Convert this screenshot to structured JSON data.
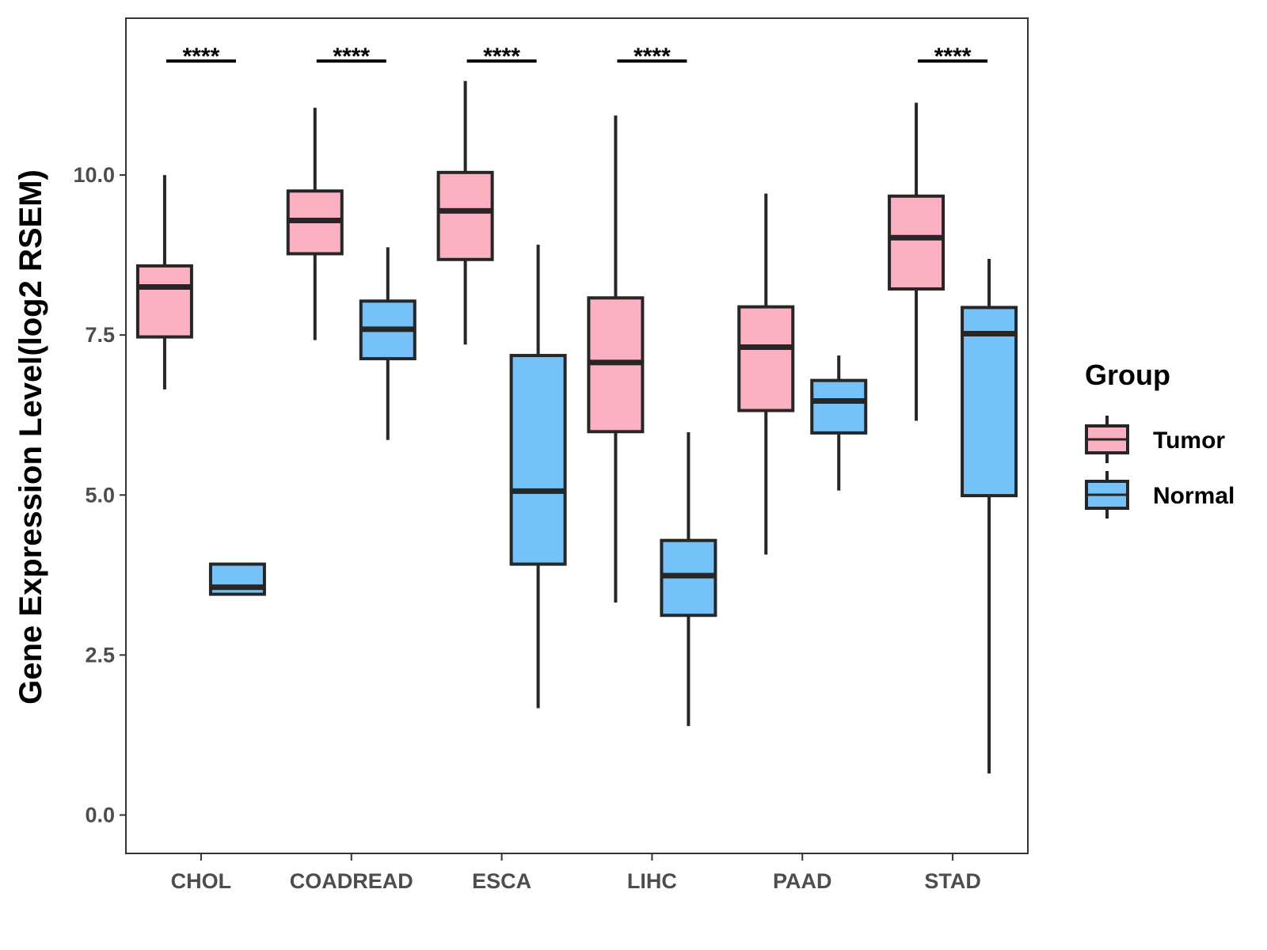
{
  "chart_data": {
    "type": "boxplot",
    "title": "",
    "xlabel": "",
    "ylabel": "Gene Expression Level(log2 RSEM)",
    "ylim": [
      -0.6,
      12.45
    ],
    "yticks": [
      0.0,
      2.5,
      5.0,
      7.5,
      10.0
    ],
    "ytick_labels": [
      "0.0",
      "2.5",
      "5.0",
      "7.5",
      "10.0"
    ],
    "categories": [
      "CHOL",
      "COADREAD",
      "ESCA",
      "LIHC",
      "PAAD",
      "STAD"
    ],
    "legend": {
      "title": "Group",
      "position": "right",
      "entries": [
        {
          "name": "Tumor",
          "color": "#fbb1c2"
        },
        {
          "name": "Normal",
          "color": "#75c2f8"
        }
      ]
    },
    "series": [
      {
        "name": "Tumor",
        "color": "#fbb1c2",
        "boxes": [
          {
            "category": "CHOL",
            "min": 6.65,
            "q1": 7.47,
            "median": 8.25,
            "q3": 8.58,
            "max": 10.0
          },
          {
            "category": "COADREAD",
            "min": 7.42,
            "q1": 8.77,
            "median": 9.29,
            "q3": 9.75,
            "max": 11.05
          },
          {
            "category": "ESCA",
            "min": 7.35,
            "q1": 8.68,
            "median": 9.44,
            "q3": 10.04,
            "max": 11.47
          },
          {
            "category": "LIHC",
            "min": 3.32,
            "q1": 5.99,
            "median": 7.07,
            "q3": 8.08,
            "max": 10.93
          },
          {
            "category": "PAAD",
            "min": 4.07,
            "q1": 6.32,
            "median": 7.31,
            "q3": 7.94,
            "max": 9.71
          },
          {
            "category": "STAD",
            "min": 6.16,
            "q1": 8.22,
            "median": 9.02,
            "q3": 9.67,
            "max": 11.13
          }
        ]
      },
      {
        "name": "Normal",
        "color": "#75c2f8",
        "boxes": [
          {
            "category": "CHOL",
            "min": 3.45,
            "q1": 3.45,
            "median": 3.56,
            "q3": 3.92,
            "max": 3.92
          },
          {
            "category": "COADREAD",
            "min": 5.86,
            "q1": 7.13,
            "median": 7.59,
            "q3": 8.03,
            "max": 8.87
          },
          {
            "category": "ESCA",
            "min": 1.67,
            "q1": 3.92,
            "median": 5.06,
            "q3": 7.18,
            "max": 8.91
          },
          {
            "category": "LIHC",
            "min": 1.39,
            "q1": 3.12,
            "median": 3.74,
            "q3": 4.29,
            "max": 5.98
          },
          {
            "category": "PAAD",
            "min": 5.07,
            "q1": 5.97,
            "median": 6.47,
            "q3": 6.79,
            "max": 7.18
          },
          {
            "category": "STAD",
            "min": 0.65,
            "q1": 4.99,
            "median": 7.52,
            "q3": 7.93,
            "max": 8.69
          }
        ]
      }
    ],
    "significance": [
      {
        "category": "CHOL",
        "label": "****"
      },
      {
        "category": "COADREAD",
        "label": "****"
      },
      {
        "category": "ESCA",
        "label": "****"
      },
      {
        "category": "LIHC",
        "label": "****"
      },
      {
        "category": "STAD",
        "label": "****"
      }
    ],
    "significance_level": 11.78
  }
}
